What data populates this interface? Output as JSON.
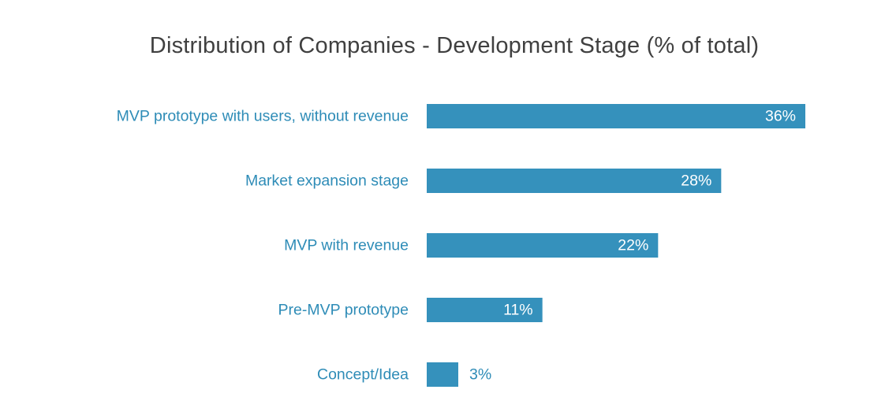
{
  "chart_data": {
    "type": "bar",
    "orientation": "horizontal",
    "title": "Distribution of Companies - Development Stage (% of total)",
    "categories": [
      "MVP prototype with users, without revenue",
      "Market expansion stage",
      "MVP with revenue",
      "Pre-MVP prototype",
      "Concept/Idea"
    ],
    "values": [
      36,
      28,
      22,
      11,
      3
    ],
    "value_labels": [
      "36%",
      "28%",
      "22%",
      "11%",
      "3%"
    ],
    "unit": "%",
    "xlim": [
      0,
      36
    ],
    "grid": false,
    "legend": "none",
    "colors": {
      "bar": "#3591BC",
      "category_label": "#2E8CB7",
      "inside_value_label": "#FFFFFF",
      "outside_value_label": "#2E8CB7",
      "title": "#404040"
    }
  }
}
